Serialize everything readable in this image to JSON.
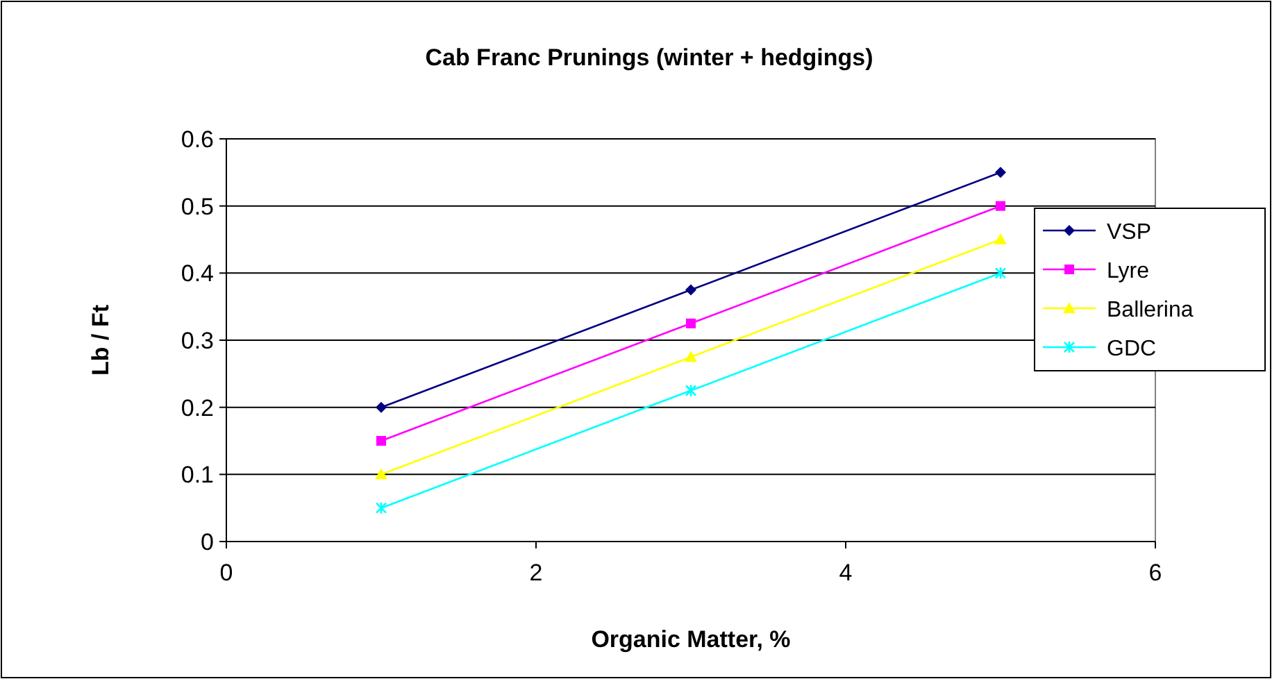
{
  "chart_data": {
    "type": "line",
    "title": "Cab Franc Prunings (winter + hedgings)",
    "xlabel": "Organic Matter, %",
    "ylabel": "Lb / Ft",
    "x": [
      1,
      3,
      5
    ],
    "xlim": [
      0,
      6
    ],
    "xticks": [
      0,
      2,
      4,
      6
    ],
    "ylim": [
      0,
      0.6
    ],
    "yticks": [
      0,
      0.1,
      0.2,
      0.3,
      0.4,
      0.5,
      0.6
    ],
    "grid": "y",
    "legend": "right",
    "series": [
      {
        "name": "VSP",
        "color": "#000080",
        "marker": "diamond",
        "values": [
          0.2,
          0.375,
          0.55
        ]
      },
      {
        "name": "Lyre",
        "color": "#ff00ff",
        "marker": "square",
        "values": [
          0.15,
          0.325,
          0.5
        ]
      },
      {
        "name": "Ballerina",
        "color": "#ffff00",
        "marker": "triangle",
        "values": [
          0.1,
          0.275,
          0.45
        ]
      },
      {
        "name": "GDC",
        "color": "#00ffff",
        "marker": "cross",
        "values": [
          0.05,
          0.225,
          0.4
        ]
      }
    ]
  }
}
